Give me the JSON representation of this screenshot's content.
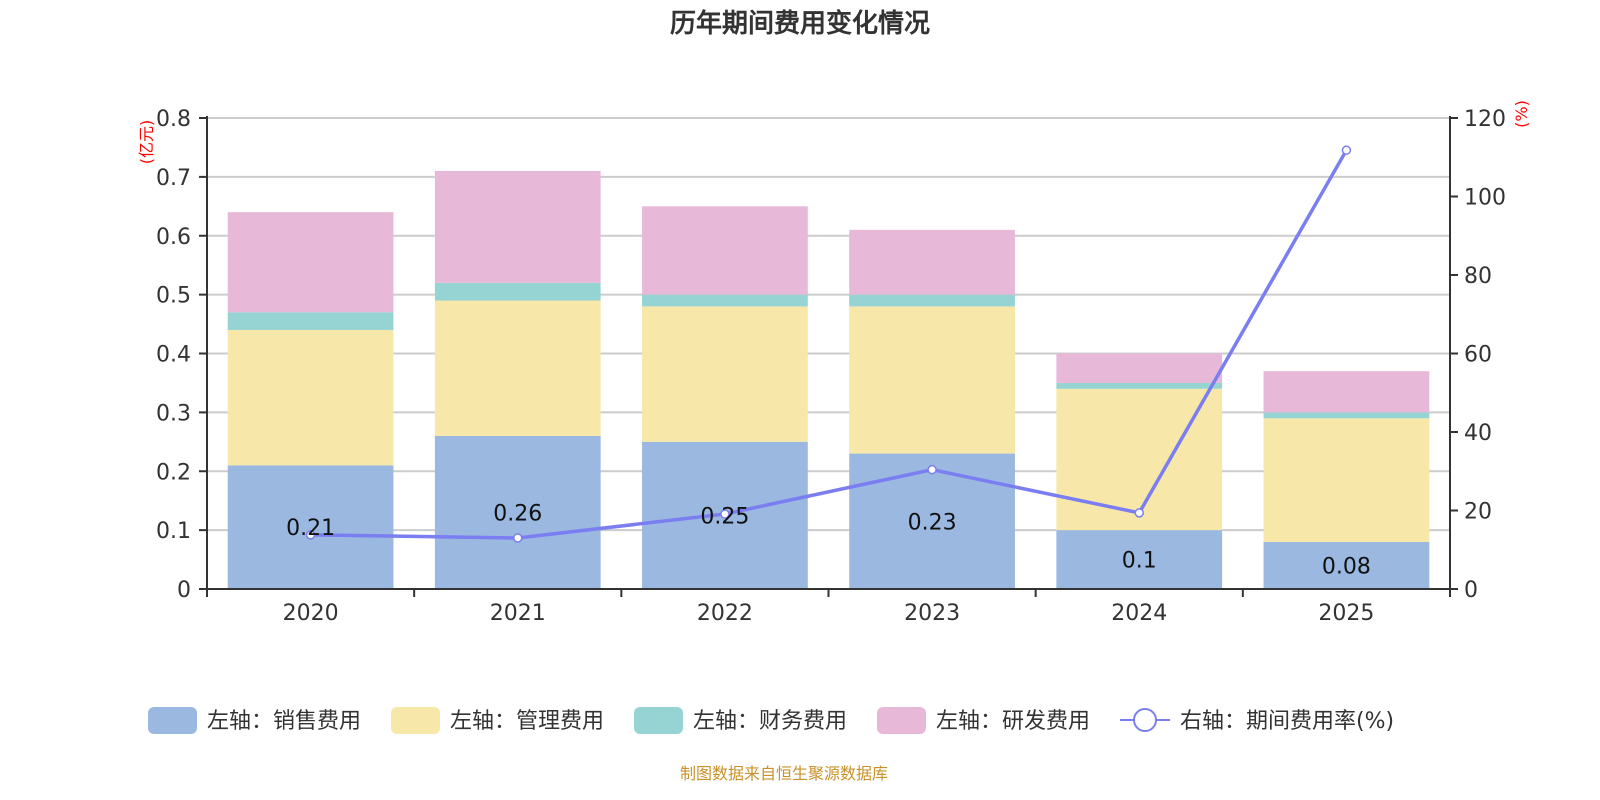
{
  "chart_data": {
    "type": "bar",
    "title": "历年期间费用变化情况",
    "categories": [
      "2020",
      "2021",
      "2022",
      "2023",
      "2024",
      "2025"
    ],
    "stacked": true,
    "left_axis": {
      "unit_label": "(亿元)",
      "ylim": [
        0,
        0.8
      ],
      "ticks": [
        "0",
        "0.1",
        "0.2",
        "0.3",
        "0.4",
        "0.5",
        "0.6",
        "0.7",
        "0.8"
      ]
    },
    "right_axis": {
      "unit_label": "(%)",
      "ylim": [
        0,
        120
      ],
      "ticks": [
        "0",
        "20",
        "40",
        "60",
        "80",
        "100",
        "120"
      ]
    },
    "grid": true,
    "series": [
      {
        "name": "左轴：销售费用",
        "axis": "left",
        "kind": "bar",
        "color": "#9bb8e1",
        "values": [
          0.21,
          0.26,
          0.25,
          0.23,
          0.1,
          0.08
        ],
        "labels": [
          "0.21",
          "0.26",
          "0.25",
          "0.23",
          "0.1",
          "0.08"
        ]
      },
      {
        "name": "左轴：管理费用",
        "axis": "left",
        "kind": "bar",
        "color": "#f7e7a9",
        "values": [
          0.23,
          0.23,
          0.23,
          0.25,
          0.24,
          0.21
        ]
      },
      {
        "name": "左轴：财务费用",
        "axis": "left",
        "kind": "bar",
        "color": "#96d3d3",
        "values": [
          0.03,
          0.03,
          0.02,
          0.02,
          0.01,
          0.01
        ]
      },
      {
        "name": "左轴：研发费用",
        "axis": "left",
        "kind": "bar",
        "color": "#e7b8d8",
        "values": [
          0.17,
          0.19,
          0.15,
          0.11,
          0.05,
          0.07
        ]
      },
      {
        "name": "右轴：期间费用率(%)",
        "axis": "right",
        "kind": "line",
        "color": "#7b7ef0",
        "values": [
          13.8,
          13.0,
          19.1,
          30.4,
          19.4,
          111.8
        ]
      }
    ],
    "legend_position": "bottom",
    "source": "制图数据来自恒生聚源数据库"
  }
}
